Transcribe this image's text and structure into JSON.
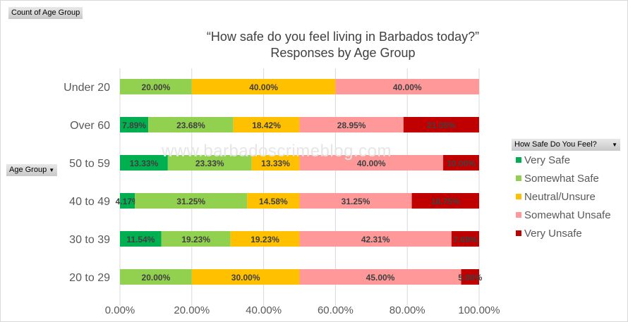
{
  "pivot": {
    "value_field": "Count of Age Group",
    "axis_field": "Age Group",
    "legend_field": "How Safe Do You Feel?"
  },
  "watermark": "www.barbadoscrimeblog.com",
  "chart_data": {
    "type": "bar",
    "orientation": "horizontal",
    "stacked": "100%",
    "title": "“How safe do you feel living in Barbados today?”",
    "subtitle": "Responses by Age Group",
    "categories": [
      "Under 20",
      "Over 60",
      "50 to 59",
      "40 to 49",
      "30 to 39",
      "20 to 29"
    ],
    "series": [
      {
        "name": "Very Safe",
        "color": "#00B050",
        "values": [
          0,
          7.89,
          13.33,
          4.17,
          11.54,
          0
        ]
      },
      {
        "name": "Somewhat Safe",
        "color": "#92D050",
        "values": [
          20.0,
          23.68,
          23.33,
          31.25,
          19.23,
          20.0
        ]
      },
      {
        "name": "Neutral/Unsure",
        "color": "#FFC000",
        "values": [
          40.0,
          18.42,
          13.33,
          14.58,
          19.23,
          30.0
        ]
      },
      {
        "name": "Somewhat Unsafe",
        "color": "#FF9999",
        "values": [
          40.0,
          28.95,
          40.0,
          31.25,
          42.31,
          45.0
        ]
      },
      {
        "name": "Very Unsafe",
        "color": "#C00000",
        "values": [
          0,
          21.05,
          10.0,
          18.75,
          7.69,
          5.0
        ]
      }
    ],
    "xlim": [
      0,
      100
    ],
    "xticks": [
      "0.00%",
      "20.00%",
      "40.00%",
      "60.00%",
      "80.00%",
      "100.00%"
    ],
    "grid": true,
    "legend_position": "right",
    "data_labels": true
  }
}
